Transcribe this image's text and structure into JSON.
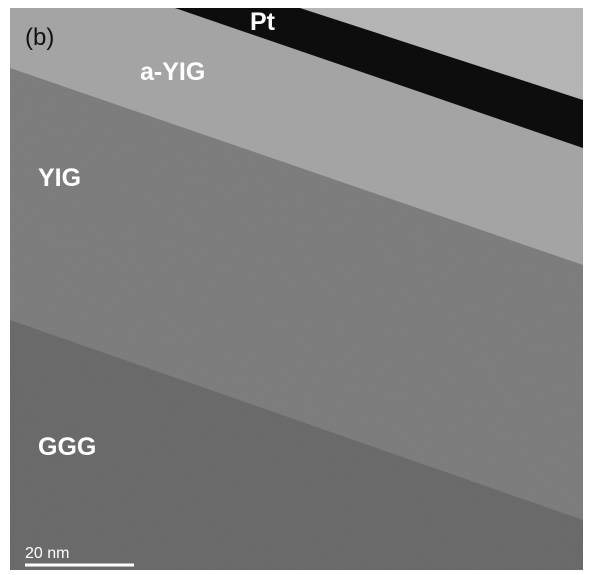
{
  "panel_label": "(b)",
  "layers": [
    {
      "label": "Pt"
    },
    {
      "label": "a-YIG"
    },
    {
      "label": "YIG"
    },
    {
      "label": "GGG"
    }
  ],
  "scale_bar": {
    "label": "20 nm"
  }
}
